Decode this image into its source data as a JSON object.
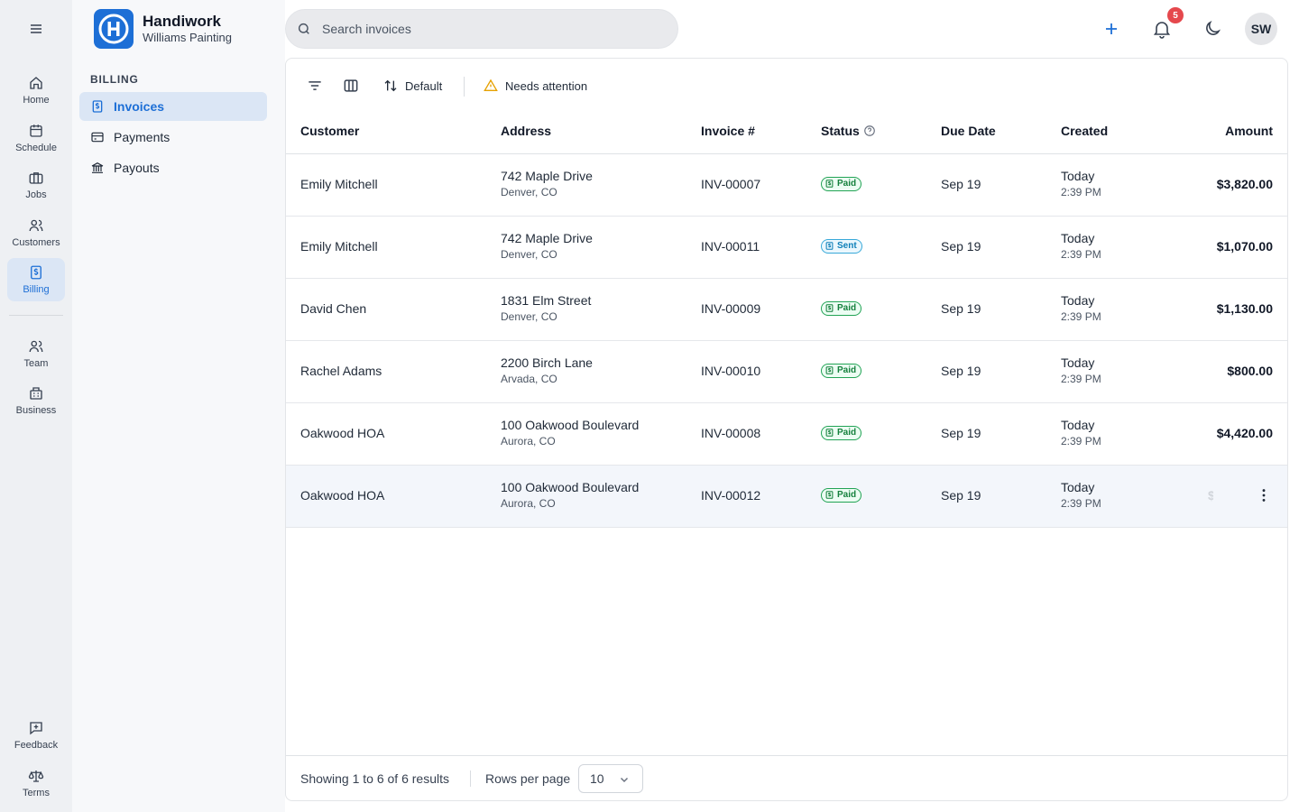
{
  "colors": {
    "accent": "#1d6fd6",
    "paid": "#15803d",
    "sent": "#0e7fb8",
    "notification_badge": "#e5484d"
  },
  "rail": {
    "items": [
      {
        "label": "Home",
        "icon": "home-icon"
      },
      {
        "label": "Schedule",
        "icon": "calendar-icon"
      },
      {
        "label": "Jobs",
        "icon": "briefcase-icon"
      },
      {
        "label": "Customers",
        "icon": "users-icon"
      },
      {
        "label": "Billing",
        "icon": "dollar-icon",
        "active": true
      },
      {
        "label": "Team",
        "icon": "team-icon"
      },
      {
        "label": "Business",
        "icon": "building-icon"
      },
      {
        "label": "Feedback",
        "icon": "feedback-icon"
      },
      {
        "label": "Terms",
        "icon": "scale-icon"
      }
    ]
  },
  "brand": {
    "name": "Handiwork",
    "company": "Williams Painting"
  },
  "sidebar": {
    "section": "BILLING",
    "items": [
      {
        "label": "Invoices",
        "icon": "invoice-icon",
        "active": true
      },
      {
        "label": "Payments",
        "icon": "credit-card-icon"
      },
      {
        "label": "Payouts",
        "icon": "bank-icon"
      }
    ]
  },
  "search": {
    "placeholder": "Search invoices",
    "value": ""
  },
  "header": {
    "notification_count": "5",
    "avatar_initials": "SW"
  },
  "toolbar": {
    "sort_label": "Default",
    "needs_attention_label": "Needs attention"
  },
  "table": {
    "columns": {
      "customer": "Customer",
      "address": "Address",
      "invoice": "Invoice #",
      "status": "Status",
      "due": "Due Date",
      "created": "Created",
      "amount": "Amount"
    },
    "rows": [
      {
        "customer": "Emily Mitchell",
        "address_line1": "742 Maple Drive",
        "address_line2": "Denver, CO",
        "invoice": "INV-00007",
        "status": "Paid",
        "due": "Sep 19",
        "created_day": "Today",
        "created_time": "2:39 PM",
        "amount": "$3,820.00"
      },
      {
        "customer": "Emily Mitchell",
        "address_line1": "742 Maple Drive",
        "address_line2": "Denver, CO",
        "invoice": "INV-00011",
        "status": "Sent",
        "due": "Sep 19",
        "created_day": "Today",
        "created_time": "2:39 PM",
        "amount": "$1,070.00"
      },
      {
        "customer": "David Chen",
        "address_line1": "1831 Elm Street",
        "address_line2": "Denver, CO",
        "invoice": "INV-00009",
        "status": "Paid",
        "due": "Sep 19",
        "created_day": "Today",
        "created_time": "2:39 PM",
        "amount": "$1,130.00"
      },
      {
        "customer": "Rachel Adams",
        "address_line1": "2200 Birch Lane",
        "address_line2": "Arvada, CO",
        "invoice": "INV-00010",
        "status": "Paid",
        "due": "Sep 19",
        "created_day": "Today",
        "created_time": "2:39 PM",
        "amount": "$800.00"
      },
      {
        "customer": "Oakwood HOA",
        "address_line1": "100 Oakwood Boulevard",
        "address_line2": "Aurora, CO",
        "invoice": "INV-00008",
        "status": "Paid",
        "due": "Sep 19",
        "created_day": "Today",
        "created_time": "2:39 PM",
        "amount": "$4,420.00"
      },
      {
        "customer": "Oakwood HOA",
        "address_line1": "100 Oakwood Boulevard",
        "address_line2": "Aurora, CO",
        "invoice": "INV-00012",
        "status": "Paid",
        "due": "Sep 19",
        "created_day": "Today",
        "created_time": "2:39 PM",
        "amount": "$",
        "hovered": true
      }
    ]
  },
  "footer": {
    "results_text": "Showing 1 to 6 of 6 results",
    "rows_per_page_label": "Rows per page",
    "rows_per_page_value": "10"
  }
}
